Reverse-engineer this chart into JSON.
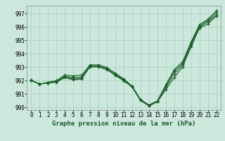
{
  "title": "Graphe pression niveau de la mer (hPa)",
  "bg_color": "#cce8dc",
  "line_color": "#1a5c2a",
  "grid_color": "#aad4c0",
  "xlim": [
    -0.5,
    22.5
  ],
  "ylim": [
    989.8,
    997.6
  ],
  "xticks": [
    0,
    1,
    2,
    3,
    4,
    5,
    6,
    7,
    8,
    9,
    10,
    11,
    12,
    13,
    14,
    15,
    16,
    17,
    18,
    19,
    20,
    21,
    22
  ],
  "yticks": [
    990,
    991,
    992,
    993,
    994,
    995,
    996,
    997
  ],
  "series": [
    [
      992.0,
      991.75,
      991.82,
      991.88,
      992.22,
      992.05,
      992.12,
      993.08,
      993.08,
      992.88,
      992.45,
      992.08,
      991.52,
      990.52,
      990.12,
      990.42,
      991.32,
      992.22,
      993.02,
      994.52,
      995.92,
      996.22,
      996.82
    ],
    [
      992.0,
      991.75,
      991.82,
      991.92,
      992.28,
      992.12,
      992.18,
      993.02,
      993.02,
      992.82,
      992.38,
      991.98,
      991.52,
      990.52,
      990.12,
      990.42,
      991.48,
      992.48,
      993.18,
      994.68,
      995.98,
      996.38,
      996.92
    ],
    [
      992.0,
      991.75,
      991.82,
      991.92,
      992.32,
      992.22,
      992.28,
      993.08,
      993.08,
      992.88,
      992.42,
      992.02,
      991.52,
      990.52,
      990.12,
      990.42,
      991.58,
      992.68,
      993.28,
      994.78,
      996.08,
      996.48,
      997.08
    ],
    [
      992.05,
      991.72,
      991.88,
      992.0,
      992.42,
      992.35,
      992.42,
      993.18,
      993.18,
      992.98,
      992.55,
      992.12,
      991.58,
      990.58,
      990.18,
      990.48,
      991.68,
      992.82,
      993.42,
      994.88,
      996.18,
      996.58,
      997.22
    ]
  ]
}
